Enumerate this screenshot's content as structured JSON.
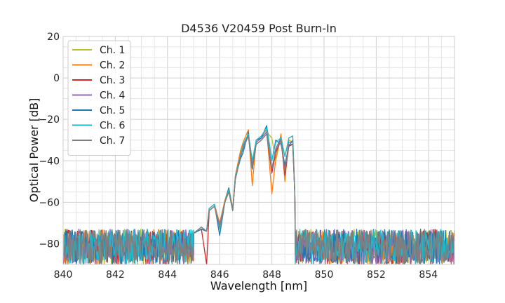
{
  "chart_data": {
    "type": "line",
    "title": "D4536 V20459 Post Burn-In",
    "xlabel": "Wavelength [nm]",
    "ylabel": "Optical Power [dB]",
    "xlim": [
      840,
      855
    ],
    "ylim": [
      -90,
      20
    ],
    "xticks": [
      840,
      842,
      844,
      846,
      848,
      850,
      852,
      854
    ],
    "yticks": [
      20,
      0,
      -20,
      -40,
      -60,
      -80
    ],
    "xtick_labels": [
      "840",
      "842",
      "844",
      "846",
      "848",
      "850",
      "852",
      "854"
    ],
    "ytick_labels": [
      "20",
      "0",
      "−20",
      "−40",
      "−60",
      "−80"
    ],
    "grid": true,
    "legend_position": "top-left",
    "series": [
      {
        "name": "Ch. 1",
        "color": "#bcbd22",
        "x": [
          845.0,
          845.3,
          845.5,
          845.6,
          845.8,
          846.0,
          846.2,
          846.35,
          846.5,
          846.6,
          846.8,
          846.9,
          847.1,
          847.25,
          847.4,
          847.6,
          847.8,
          848.0,
          848.15,
          848.35,
          848.5,
          848.65,
          848.8,
          848.88
        ],
        "y": [
          -75,
          -72,
          -74,
          -64,
          -62,
          -71,
          -60,
          -55,
          -64,
          -48,
          -36,
          -33,
          -27,
          -40,
          -31,
          -29,
          -26,
          -29,
          -40,
          -28,
          -38,
          -30,
          -31,
          -55
        ]
      },
      {
        "name": "Ch. 2",
        "color": "#ff7f0e",
        "x": [
          845.0,
          845.3,
          845.5,
          845.6,
          845.8,
          846.0,
          846.2,
          846.35,
          846.5,
          846.6,
          846.8,
          846.9,
          847.1,
          847.25,
          847.4,
          847.6,
          847.8,
          848.0,
          848.15,
          848.35,
          848.5,
          848.65,
          848.8,
          848.88
        ],
        "y": [
          -75,
          -72,
          -74,
          -63,
          -61,
          -70,
          -59,
          -53,
          -63,
          -47,
          -35,
          -31,
          -25,
          -52,
          -30,
          -28,
          -25,
          -56,
          -39,
          -27,
          -50,
          -29,
          -28,
          -55
        ]
      },
      {
        "name": "Ch. 3",
        "color": "#d62728",
        "x": [
          845.0,
          845.3,
          845.5,
          845.6,
          845.8,
          846.0,
          846.2,
          846.35,
          846.5,
          846.6,
          846.8,
          846.9,
          847.1,
          847.25,
          847.4,
          847.6,
          847.8,
          848.0,
          848.15,
          848.35,
          848.5,
          848.65,
          848.8,
          848.88
        ],
        "y": [
          -75,
          -73,
          -90,
          -64,
          -62,
          -72,
          -60,
          -54,
          -64,
          -49,
          -38,
          -34,
          -28,
          -44,
          -32,
          -30,
          -27,
          -46,
          -36,
          -30,
          -47,
          -33,
          -32,
          -56
        ]
      },
      {
        "name": "Ch. 4",
        "color": "#9467bd",
        "x": [
          845.0,
          845.3,
          845.5,
          845.6,
          845.8,
          846.0,
          846.2,
          846.35,
          846.5,
          846.6,
          846.8,
          846.9,
          847.1,
          847.25,
          847.4,
          847.6,
          847.8,
          848.0,
          848.15,
          848.35,
          848.5,
          848.65,
          848.8,
          848.88
        ],
        "y": [
          -75,
          -73,
          -74,
          -64,
          -62,
          -71,
          -60,
          -54,
          -64,
          -48,
          -37,
          -33,
          -27,
          -42,
          -31,
          -29,
          -26,
          -44,
          -34,
          -29,
          -44,
          -31,
          -31,
          -56
        ]
      },
      {
        "name": "Ch. 5",
        "color": "#1f77b4",
        "x": [
          845.0,
          845.3,
          845.5,
          845.6,
          845.8,
          846.0,
          846.2,
          846.35,
          846.5,
          846.6,
          846.8,
          846.9,
          847.1,
          847.25,
          847.4,
          847.6,
          847.8,
          848.0,
          848.15,
          848.35,
          848.5,
          848.65,
          848.8,
          848.88
        ],
        "y": [
          -75,
          -73,
          -74,
          -63,
          -61,
          -76,
          -60,
          -53,
          -64,
          -48,
          -39,
          -36,
          -26,
          -44,
          -30,
          -29,
          -23,
          -40,
          -30,
          -32,
          -42,
          -33,
          -30,
          -56
        ]
      },
      {
        "name": "Ch. 6",
        "color": "#17becf",
        "x": [
          845.0,
          845.3,
          845.5,
          845.6,
          845.8,
          846.0,
          846.2,
          846.35,
          846.5,
          846.6,
          846.8,
          846.9,
          847.1,
          847.25,
          847.4,
          847.6,
          847.8,
          848.0,
          848.15,
          848.35,
          848.5,
          848.65,
          848.8,
          848.88
        ],
        "y": [
          -75,
          -72,
          -74,
          -63,
          -61,
          -73,
          -60,
          -54,
          -64,
          -48,
          -37,
          -32,
          -27,
          -40,
          -30,
          -28,
          -24,
          -40,
          -31,
          -29,
          -38,
          -29,
          -28,
          -56
        ]
      },
      {
        "name": "Ch. 7",
        "color": "#7f7f7f",
        "x": [
          845.0,
          845.3,
          845.5,
          845.6,
          845.8,
          846.0,
          846.2,
          846.35,
          846.5,
          846.6,
          846.8,
          846.9,
          847.1,
          847.25,
          847.4,
          847.6,
          847.8,
          848.0,
          848.15,
          848.35,
          848.5,
          848.65,
          848.8,
          848.88
        ],
        "y": [
          -75,
          -72,
          -74,
          -64,
          -62,
          -72,
          -60,
          -55,
          -64,
          -49,
          -38,
          -34,
          -28,
          -43,
          -32,
          -30,
          -27,
          -44,
          -35,
          -30,
          -45,
          -32,
          -32,
          -56
        ]
      }
    ],
    "noise_floor": {
      "x_ranges": [
        [
          840,
          845.0
        ],
        [
          848.9,
          855
        ]
      ],
      "y_range": [
        -90,
        -73
      ]
    }
  }
}
